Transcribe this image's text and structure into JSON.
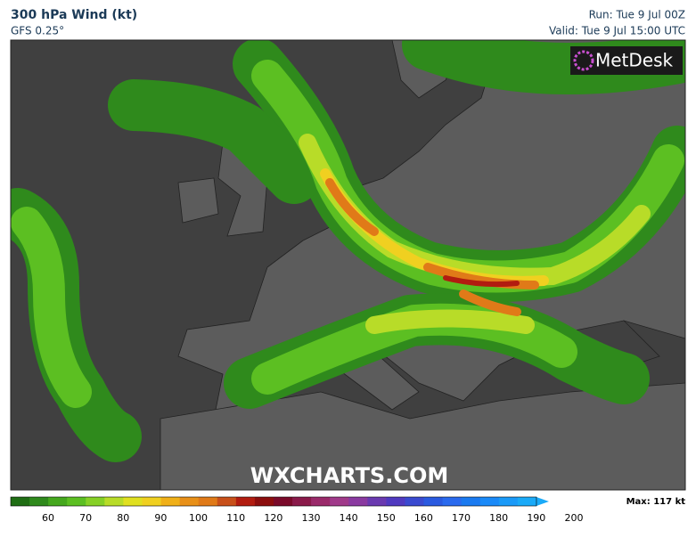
{
  "header": {
    "title": "300 hPa Wind (kt)",
    "model": "GFS 0.25°",
    "run": "Run: Tue 9 Jul 00Z",
    "valid": "Valid: Tue 9 Jul 15:00 UTC"
  },
  "map": {
    "logo": "MetDesk",
    "watermark": "WXCHARTS.COM"
  },
  "colorbar": {
    "max": "Max: 117 kt",
    "labels": [
      60,
      70,
      80,
      90,
      100,
      110,
      120,
      130,
      140,
      150,
      160,
      170,
      180,
      190,
      200
    ]
  }
}
